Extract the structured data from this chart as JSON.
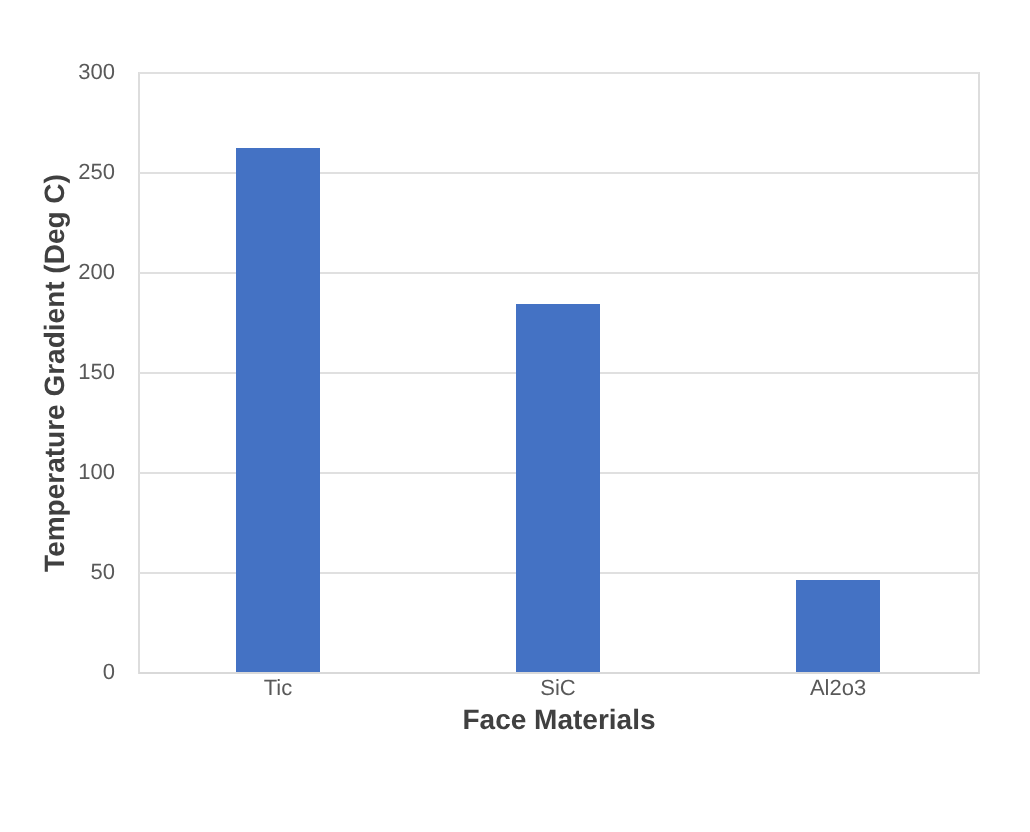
{
  "chart_data": {
    "type": "bar",
    "xlabel": "Face Materials",
    "ylabel": "Temperature Gradient (Deg C)",
    "categories": [
      "Tic",
      "SiC",
      "Al2o3"
    ],
    "values": [
      262,
      184,
      46
    ],
    "color": "#4472c4",
    "ylim": [
      0,
      300
    ],
    "yticks": [
      0,
      50,
      100,
      150,
      200,
      250,
      300
    ],
    "grid": "y"
  }
}
